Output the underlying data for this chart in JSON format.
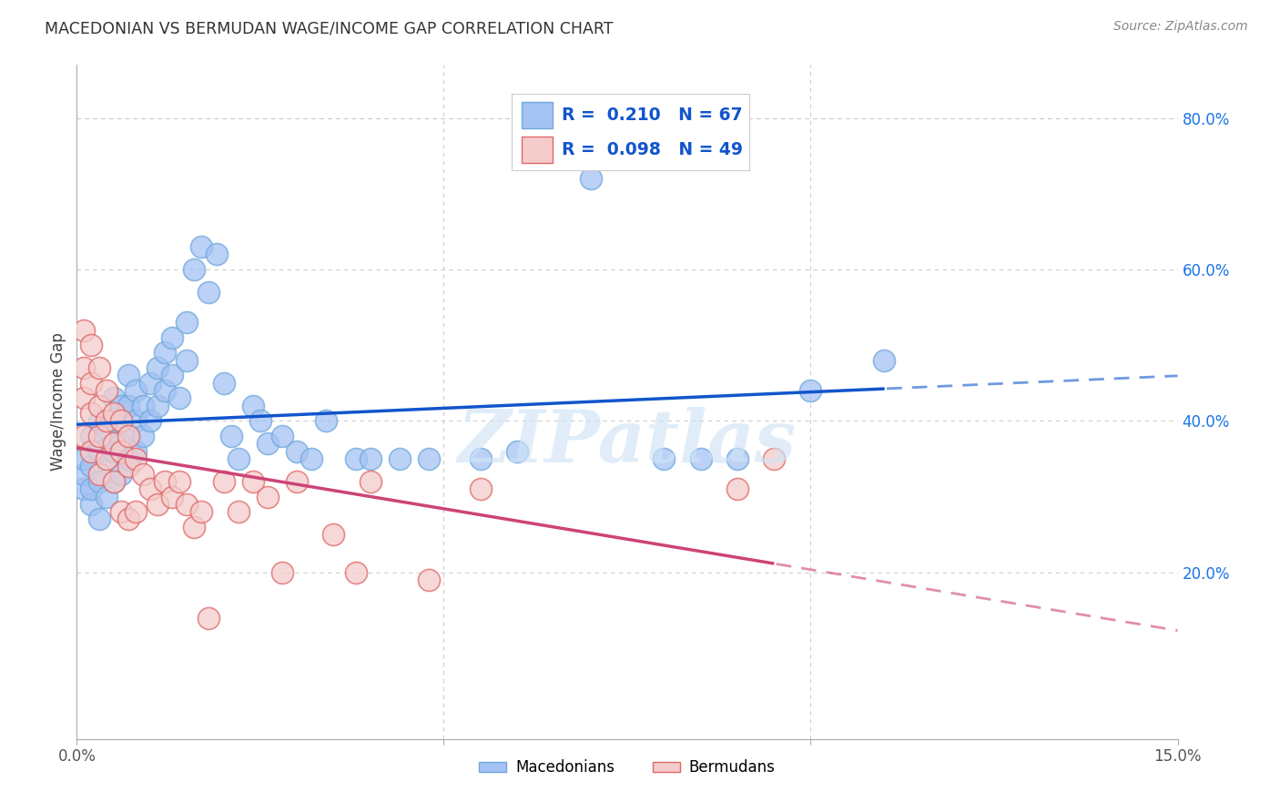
{
  "title": "MACEDONIAN VS BERMUDAN WAGE/INCOME GAP CORRELATION CHART",
  "source": "Source: ZipAtlas.com",
  "ylabel": "Wage/Income Gap",
  "xlim": [
    0.0,
    0.15
  ],
  "ylim": [
    -0.02,
    0.87
  ],
  "yticks_right": [
    0.2,
    0.4,
    0.6,
    0.8
  ],
  "macedonian_R": 0.21,
  "macedonian_N": 67,
  "bermudan_R": 0.098,
  "bermudan_N": 49,
  "macedonian_color": "#a4c2f4",
  "macedonian_edge_color": "#6fa8dc",
  "bermudan_color": "#f4cccc",
  "bermudan_edge_color": "#e06666",
  "macedonian_line_color": "#1155cc",
  "bermudan_line_color": "#cc4477",
  "watermark": "ZIPatlas",
  "grid_color": "#cccccc",
  "macedonian_x": [
    0.001,
    0.001,
    0.001,
    0.002,
    0.002,
    0.002,
    0.002,
    0.003,
    0.003,
    0.003,
    0.003,
    0.004,
    0.004,
    0.004,
    0.005,
    0.005,
    0.005,
    0.005,
    0.006,
    0.006,
    0.006,
    0.007,
    0.007,
    0.007,
    0.007,
    0.008,
    0.008,
    0.008,
    0.009,
    0.009,
    0.01,
    0.01,
    0.011,
    0.011,
    0.012,
    0.012,
    0.013,
    0.013,
    0.014,
    0.015,
    0.015,
    0.016,
    0.017,
    0.018,
    0.019,
    0.02,
    0.021,
    0.022,
    0.024,
    0.025,
    0.026,
    0.028,
    0.03,
    0.032,
    0.034,
    0.038,
    0.04,
    0.044,
    0.048,
    0.055,
    0.06,
    0.07,
    0.08,
    0.085,
    0.09,
    0.1,
    0.11
  ],
  "macedonian_y": [
    0.31,
    0.33,
    0.35,
    0.29,
    0.31,
    0.34,
    0.38,
    0.27,
    0.32,
    0.36,
    0.4,
    0.3,
    0.35,
    0.39,
    0.32,
    0.36,
    0.4,
    0.43,
    0.33,
    0.37,
    0.42,
    0.35,
    0.38,
    0.42,
    0.46,
    0.36,
    0.4,
    0.44,
    0.38,
    0.42,
    0.4,
    0.45,
    0.42,
    0.47,
    0.44,
    0.49,
    0.46,
    0.51,
    0.43,
    0.48,
    0.53,
    0.6,
    0.63,
    0.57,
    0.62,
    0.45,
    0.38,
    0.35,
    0.42,
    0.4,
    0.37,
    0.38,
    0.36,
    0.35,
    0.4,
    0.35,
    0.35,
    0.35,
    0.35,
    0.35,
    0.36,
    0.72,
    0.35,
    0.35,
    0.35,
    0.44,
    0.48
  ],
  "bermudan_x": [
    0.001,
    0.001,
    0.001,
    0.001,
    0.002,
    0.002,
    0.002,
    0.002,
    0.003,
    0.003,
    0.003,
    0.003,
    0.004,
    0.004,
    0.004,
    0.005,
    0.005,
    0.005,
    0.006,
    0.006,
    0.006,
    0.007,
    0.007,
    0.007,
    0.008,
    0.008,
    0.009,
    0.01,
    0.011,
    0.012,
    0.013,
    0.014,
    0.015,
    0.016,
    0.017,
    0.018,
    0.02,
    0.022,
    0.024,
    0.026,
    0.028,
    0.03,
    0.035,
    0.038,
    0.04,
    0.048,
    0.055,
    0.09,
    0.095
  ],
  "bermudan_y": [
    0.52,
    0.47,
    0.43,
    0.38,
    0.5,
    0.45,
    0.41,
    0.36,
    0.47,
    0.42,
    0.38,
    0.33,
    0.44,
    0.4,
    0.35,
    0.41,
    0.37,
    0.32,
    0.4,
    0.36,
    0.28,
    0.38,
    0.34,
    0.27,
    0.35,
    0.28,
    0.33,
    0.31,
    0.29,
    0.32,
    0.3,
    0.32,
    0.29,
    0.26,
    0.28,
    0.14,
    0.32,
    0.28,
    0.32,
    0.3,
    0.2,
    0.32,
    0.25,
    0.2,
    0.32,
    0.19,
    0.31,
    0.31,
    0.35
  ]
}
